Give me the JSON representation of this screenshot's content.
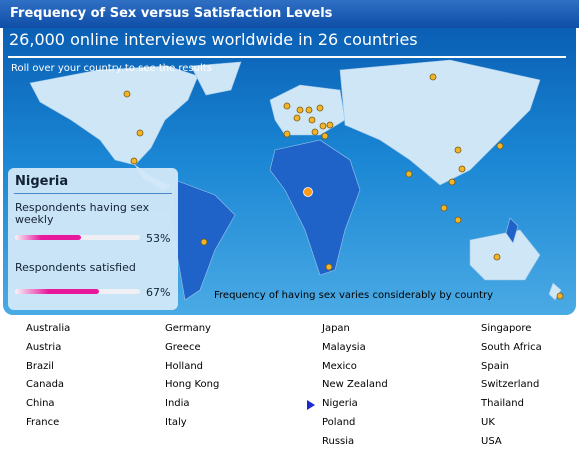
{
  "header": {
    "title": "Frequency of Sex versus Satisfaction Levels",
    "subtitle": "26,000 online interviews worldwide in 26 countries",
    "instruction": "Roll over your country to see the results"
  },
  "panel": {
    "country": "Nigeria",
    "metrics": [
      {
        "label": "Respondents having sex weekly",
        "value": 53,
        "value_label": "53%"
      },
      {
        "label": "Respondents satisfied",
        "value": 67,
        "value_label": "67%"
      }
    ]
  },
  "caption": "Frequency of having sex varies considerably by country",
  "countries": [
    "Australia",
    "Austria",
    "Brazil",
    "Canada",
    "China",
    "France",
    "Germany",
    "Greece",
    "Holland",
    "Hong Kong",
    "India",
    "Italy",
    "Japan",
    "Malaysia",
    "Mexico",
    "New Zealand",
    "Nigeria",
    "Poland",
    "Russia",
    "Singapore",
    "South Africa",
    "Spain",
    "Switzerland",
    "Thailand",
    "UK",
    "USA"
  ]
}
